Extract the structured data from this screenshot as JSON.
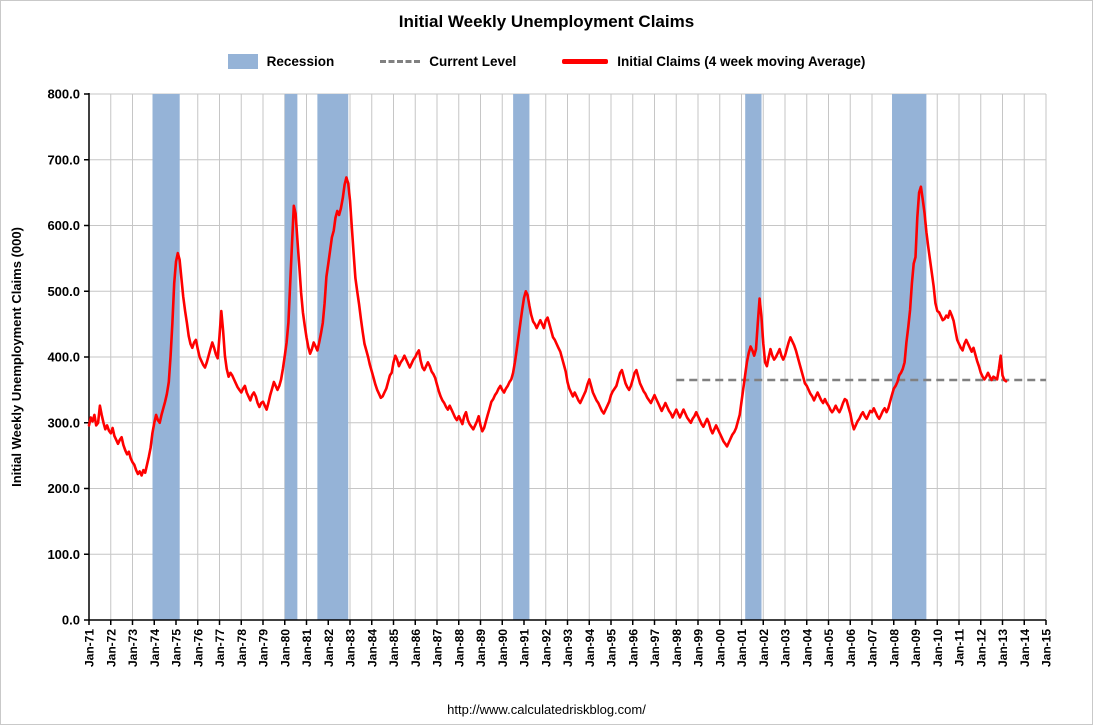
{
  "page": {
    "title": "Initial Weekly Unemployment Claims",
    "footer": "http://www.calculatedriskblog.com/"
  },
  "legend": {
    "recession": "Recession",
    "current_level": "Current Level",
    "initial_claims": "Initial Claims (4 week moving Average)"
  },
  "chart_data": {
    "type": "line",
    "title": "Initial Weekly Unemployment Claims",
    "ylabel": "Initial Weekly Unemployment Claims (000)",
    "xlabel": "",
    "footer": "http://www.calculatedriskblog.com/",
    "grid": true,
    "legend_position": "top",
    "ylim": [
      0,
      800
    ],
    "ytick_step": 100,
    "y_tick_labels": [
      "0.0",
      "100.0",
      "200.0",
      "300.0",
      "400.0",
      "500.0",
      "600.0",
      "700.0",
      "800.0"
    ],
    "x_axis": {
      "start_year": 1971,
      "end_year": 2015,
      "tick_labels": [
        "Jan-71",
        "Jan-72",
        "Jan-73",
        "Jan-74",
        "Jan-75",
        "Jan-76",
        "Jan-77",
        "Jan-78",
        "Jan-79",
        "Jan-80",
        "Jan-81",
        "Jan-82",
        "Jan-83",
        "Jan-84",
        "Jan-85",
        "Jan-86",
        "Jan-87",
        "Jan-88",
        "Jan-89",
        "Jan-90",
        "Jan-91",
        "Jan-92",
        "Jan-93",
        "Jan-94",
        "Jan-95",
        "Jan-96",
        "Jan-97",
        "Jan-98",
        "Jan-99",
        "Jan-00",
        "Jan-01",
        "Jan-02",
        "Jan-03",
        "Jan-04",
        "Jan-05",
        "Jan-06",
        "Jan-07",
        "Jan-08",
        "Jan-09",
        "Jan-10",
        "Jan-11",
        "Jan-12",
        "Jan-13",
        "Jan-14",
        "Jan-15"
      ]
    },
    "colors": {
      "recession": "#95B3D7",
      "current_level": "#808080",
      "series": "#FF0000",
      "grid": "#C6C6C6",
      "axis": "#000000"
    },
    "recessions": [
      [
        1973.92,
        1975.17
      ],
      [
        1980.0,
        1980.58
      ],
      [
        1981.5,
        1982.92
      ],
      [
        1990.5,
        1991.25
      ],
      [
        2001.17,
        2001.92
      ],
      [
        2007.92,
        2009.5
      ]
    ],
    "current_level": {
      "value": 365,
      "x_start": 1998.0,
      "x_end": 2015.0
    },
    "series": [
      {
        "name": "Initial Claims (4 week moving Average)",
        "x_start": 1971.0,
        "x_step_months": 1,
        "values": [
          296,
          308,
          302,
          312,
          296,
          300,
          326,
          312,
          300,
          290,
          296,
          288,
          284,
          292,
          280,
          274,
          268,
          274,
          278,
          266,
          258,
          252,
          256,
          246,
          240,
          236,
          228,
          222,
          226,
          220,
          228,
          224,
          236,
          248,
          262,
          284,
          300,
          312,
          304,
          300,
          312,
          322,
          332,
          344,
          362,
          402,
          452,
          512,
          545,
          558,
          548,
          520,
          492,
          470,
          452,
          432,
          420,
          414,
          422,
          426,
          412,
          400,
          394,
          388,
          384,
          392,
          402,
          412,
          422,
          414,
          404,
          398,
          432,
          470,
          440,
          402,
          382,
          370,
          376,
          372,
          366,
          360,
          354,
          350,
          346,
          352,
          356,
          346,
          340,
          334,
          342,
          346,
          340,
          330,
          324,
          330,
          332,
          326,
          320,
          330,
          342,
          352,
          362,
          356,
          350,
          356,
          366,
          382,
          402,
          422,
          452,
          512,
          572,
          630,
          618,
          578,
          538,
          498,
          468,
          448,
          430,
          415,
          405,
          412,
          422,
          416,
          410,
          422,
          436,
          452,
          482,
          522,
          542,
          562,
          582,
          592,
          612,
          622,
          616,
          626,
          642,
          662,
          673,
          664,
          638,
          598,
          558,
          520,
          500,
          480,
          458,
          438,
          420,
          410,
          400,
          388,
          378,
          368,
          358,
          350,
          344,
          338,
          340,
          346,
          352,
          362,
          372,
          376,
          392,
          402,
          396,
          386,
          392,
          396,
          402,
          396,
          390,
          384,
          390,
          396,
          400,
          406,
          410,
          394,
          384,
          380,
          386,
          392,
          386,
          378,
          374,
          368,
          358,
          348,
          340,
          334,
          330,
          324,
          320,
          326,
          320,
          314,
          308,
          304,
          310,
          304,
          298,
          310,
          316,
          304,
          298,
          294,
          290,
          296,
          302,
          310,
          296,
          287,
          292,
          302,
          312,
          322,
          332,
          336,
          342,
          346,
          352,
          356,
          350,
          346,
          352,
          356,
          362,
          366,
          376,
          392,
          412,
          432,
          452,
          472,
          490,
          500,
          494,
          478,
          464,
          454,
          450,
          444,
          450,
          456,
          450,
          444,
          456,
          460,
          450,
          440,
          430,
          426,
          420,
          414,
          408,
          398,
          388,
          378,
          362,
          352,
          346,
          340,
          346,
          340,
          334,
          330,
          336,
          342,
          348,
          358,
          366,
          356,
          346,
          340,
          334,
          330,
          324,
          318,
          314,
          320,
          326,
          332,
          342,
          348,
          352,
          356,
          366,
          376,
          380,
          370,
          360,
          354,
          350,
          356,
          366,
          376,
          380,
          370,
          360,
          354,
          348,
          344,
          338,
          334,
          330,
          336,
          342,
          336,
          330,
          324,
          318,
          324,
          330,
          324,
          318,
          314,
          308,
          314,
          320,
          314,
          308,
          314,
          320,
          314,
          308,
          304,
          300,
          306,
          310,
          316,
          310,
          304,
          298,
          294,
          300,
          306,
          300,
          290,
          284,
          290,
          296,
          290,
          284,
          278,
          272,
          268,
          264,
          270,
          276,
          282,
          286,
          292,
          302,
          312,
          332,
          352,
          372,
          392,
          406,
          416,
          410,
          402,
          412,
          452,
          489,
          462,
          420,
          392,
          386,
          400,
          412,
          402,
          396,
          400,
          406,
          412,
          402,
          396,
          402,
          412,
          422,
          430,
          424,
          418,
          410,
          400,
          390,
          380,
          370,
          360,
          356,
          350,
          344,
          340,
          334,
          340,
          346,
          340,
          334,
          330,
          336,
          330,
          326,
          320,
          316,
          320,
          326,
          320,
          316,
          322,
          330,
          336,
          334,
          324,
          314,
          300,
          290,
          296,
          302,
          306,
          312,
          316,
          310,
          306,
          312,
          318,
          316,
          322,
          316,
          310,
          306,
          312,
          318,
          322,
          316,
          322,
          332,
          342,
          352,
          356,
          362,
          372,
          376,
          382,
          392,
          422,
          446,
          472,
          512,
          542,
          552,
          612,
          650,
          659,
          640,
          618,
          590,
          568,
          548,
          528,
          508,
          482,
          470,
          468,
          462,
          456,
          458,
          463,
          460,
          470,
          463,
          455,
          440,
          426,
          420,
          414,
          410,
          420,
          426,
          420,
          414,
          408,
          414,
          404,
          394,
          386,
          376,
          370,
          366,
          370,
          376,
          370,
          365,
          370,
          368,
          366,
          382,
          402,
          372,
          365,
          363
        ]
      }
    ]
  }
}
